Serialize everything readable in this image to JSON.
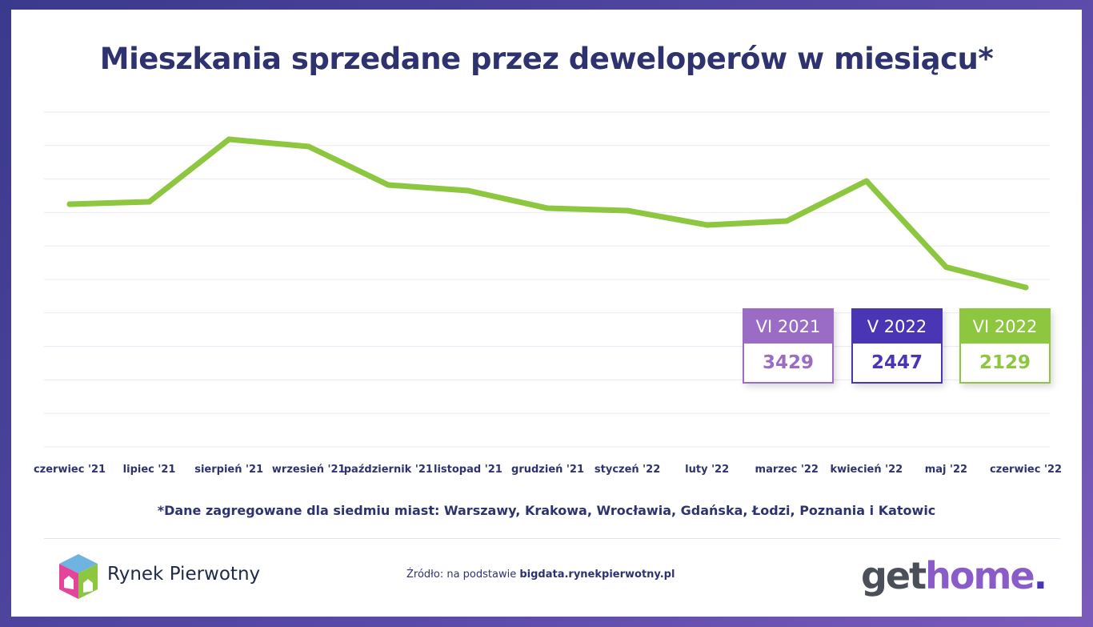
{
  "title": "Mieszkania sprzedane przez deweloperów w miesiącu*",
  "chart_data": {
    "type": "line",
    "title": "Mieszkania sprzedane przez deweloperów w miesiącu*",
    "categories": [
      "czerwiec '21",
      "lipiec '21",
      "sierpień '21",
      "wrzesień '21",
      "październik '21",
      "listopad '21",
      "grudzień '21",
      "styczeń '22",
      "luty '22",
      "marzec '22",
      "kwiecień '22",
      "maj '22",
      "czerwiec '22"
    ],
    "series": [
      {
        "values": [
          3429,
          3466,
          4441,
          4329,
          3729,
          3641,
          3366,
          3329,
          3104,
          3166,
          3791,
          2447,
          2129
        ],
        "color": "#8dc63f"
      }
    ],
    "ylim": [
      -358,
      4866
    ],
    "grid": true,
    "annotations": [
      {
        "label": "VI 2021",
        "value": "3429",
        "color": "#9b6cc6"
      },
      {
        "label": "V 2022",
        "value": "2447",
        "color": "#4a35b5"
      },
      {
        "label": "VI 2022",
        "value": "2129",
        "color": "#8dc63f"
      }
    ]
  },
  "note": "*Dane zagregowane dla  siedmiu miast: Warszawy, Krakowa, Wrocławia, Gdańska, Łodzi, Poznania i Katowic",
  "footer": {
    "logo_text": "Rynek Pierwotny",
    "source_prefix": "Źródło: na podstawie ",
    "source_link": "bigdata.rynekpierwotny.pl",
    "brand_get": "get",
    "brand_home": "home",
    "brand_dot": "."
  }
}
